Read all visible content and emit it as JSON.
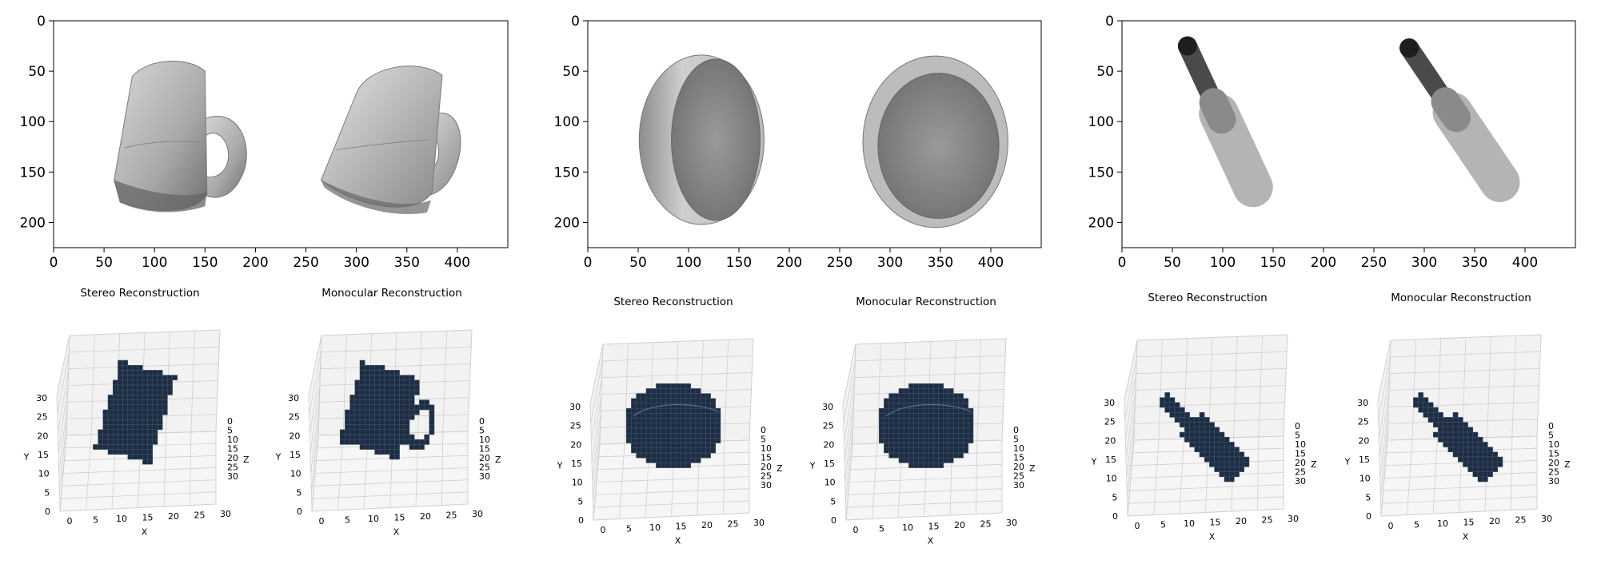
{
  "chart_data": [
    {
      "type": "image",
      "image_content": "mug",
      "x_ticks": [
        0,
        50,
        100,
        150,
        200,
        250,
        300,
        350,
        400
      ],
      "y_ticks": [
        0,
        50,
        100,
        150,
        200
      ],
      "xlim": [
        0,
        450
      ],
      "ylim": [
        225,
        0
      ],
      "views": [
        {
          "title": "Stereo Reconstruction",
          "shape": "mug-stereo"
        },
        {
          "title": "Monocular Reconstruction",
          "shape": "mug-mono"
        }
      ]
    },
    {
      "type": "image",
      "image_content": "bowl",
      "x_ticks": [
        0,
        50,
        100,
        150,
        200,
        250,
        300,
        350,
        400
      ],
      "y_ticks": [
        0,
        50,
        100,
        150,
        200
      ],
      "xlim": [
        0,
        450
      ],
      "ylim": [
        225,
        0
      ],
      "views": [
        {
          "title": "Stereo Reconstruction",
          "shape": "bowl"
        },
        {
          "title": "Monocular Reconstruction",
          "shape": "bowl"
        }
      ]
    },
    {
      "type": "image",
      "image_content": "bottle",
      "x_ticks": [
        0,
        50,
        100,
        150,
        200,
        250,
        300,
        350,
        400
      ],
      "y_ticks": [
        0,
        50,
        100,
        150,
        200
      ],
      "xlim": [
        0,
        450
      ],
      "ylim": [
        225,
        0
      ],
      "views": [
        {
          "title": "Stereo Reconstruction",
          "shape": "bottle"
        },
        {
          "title": "Monocular Reconstruction",
          "shape": "bottle"
        }
      ]
    }
  ],
  "voxel_axes": {
    "x_label": "X",
    "y_label": "Y",
    "z_label": "Z",
    "x_ticks": [
      0,
      5,
      10,
      15,
      20,
      25,
      30
    ],
    "y_ticks": [
      0,
      5,
      10,
      15,
      20,
      25,
      30
    ],
    "z_ticks": [
      0,
      5,
      10,
      15,
      20,
      25,
      30
    ]
  },
  "colors": {
    "voxel": "#1e2d42",
    "voxel_edge": "#3e5570",
    "pane": "#f2f2f2",
    "grid": "#d0d0d0"
  }
}
